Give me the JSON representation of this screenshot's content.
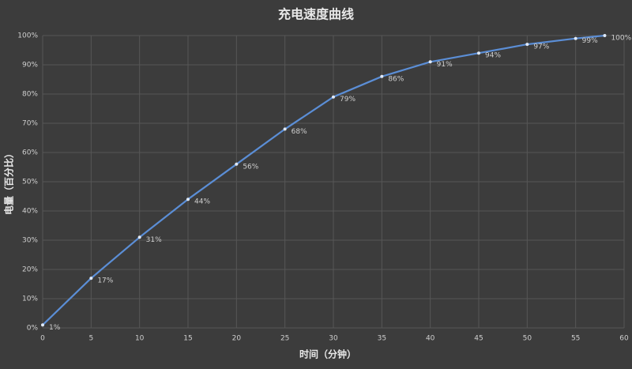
{
  "chart_data": {
    "type": "line",
    "title": "充电速度曲线",
    "x_label": "时间（分钟）",
    "y_label": "电量（百分比）",
    "x": [
      0,
      5,
      10,
      15,
      20,
      25,
      30,
      35,
      40,
      45,
      50,
      55,
      58
    ],
    "series": [
      {
        "color": "#5b8ed6",
        "values": [
          1,
          17,
          31,
          44,
          56,
          68,
          79,
          86,
          91,
          94,
          97,
          99,
          100
        ],
        "value_labels": [
          "1%",
          "17%",
          "31%",
          "44%",
          "56%",
          "68%",
          "79%",
          "86%",
          "91%",
          "94%",
          "97%",
          "99%",
          "100%"
        ]
      }
    ],
    "xlim": [
      0,
      60
    ],
    "xticks": [
      0,
      5,
      10,
      15,
      20,
      25,
      30,
      35,
      40,
      45,
      50,
      55,
      60
    ],
    "ylim": [
      0,
      100
    ],
    "yticks": [
      {
        "value": 0,
        "label": "0%"
      },
      {
        "value": 10,
        "label": "10%"
      },
      {
        "value": 20,
        "label": "20%"
      },
      {
        "value": 30,
        "label": "30%"
      },
      {
        "value": 40,
        "label": "40%"
      },
      {
        "value": 50,
        "label": "50%"
      },
      {
        "value": 60,
        "label": "60%"
      },
      {
        "value": 70,
        "label": "70%"
      },
      {
        "value": 80,
        "label": "80%"
      },
      {
        "value": 90,
        "label": "90%"
      },
      {
        "value": 100,
        "label": "100%"
      }
    ],
    "grid": true
  }
}
